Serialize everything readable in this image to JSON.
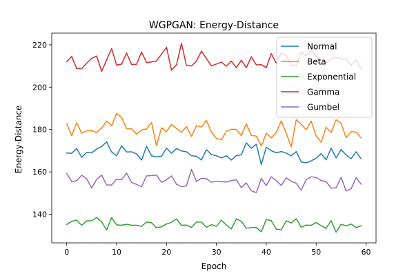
{
  "chart_data": {
    "type": "line",
    "title": "WGPGAN: Energy-Distance",
    "xlabel": "Epoch",
    "ylabel": "Energy-Distance",
    "xlim": [
      -3,
      62
    ],
    "ylim": [
      126.5,
      225.5
    ],
    "xticks": [
      0,
      10,
      20,
      30,
      40,
      50,
      60
    ],
    "yticks": [
      140,
      160,
      180,
      200,
      220
    ],
    "grid": false,
    "legend_position": "top-right",
    "x": [
      0,
      1,
      2,
      3,
      4,
      5,
      6,
      7,
      8,
      9,
      10,
      11,
      12,
      13,
      14,
      15,
      16,
      17,
      18,
      19,
      20,
      21,
      22,
      23,
      24,
      25,
      26,
      27,
      28,
      29,
      30,
      31,
      32,
      33,
      34,
      35,
      36,
      37,
      38,
      39,
      40,
      41,
      42,
      43,
      44,
      45,
      46,
      47,
      48,
      49,
      50,
      51,
      52,
      53,
      54,
      55,
      56,
      57,
      58,
      59
    ],
    "series": [
      {
        "name": "Normal",
        "color": "#1f77b4",
        "values": [
          168.9,
          168.8,
          171.0,
          166.9,
          169.2,
          169.0,
          170.8,
          172.0,
          174.2,
          169.4,
          167.6,
          172.3,
          169.4,
          169.5,
          168.5,
          165.6,
          172.1,
          167.6,
          167.1,
          167.4,
          171.2,
          168.8,
          171.0,
          169.9,
          169.5,
          167.6,
          167.4,
          165.6,
          170.5,
          168.2,
          167.6,
          166.6,
          167.6,
          165.6,
          167.7,
          168.1,
          173.7,
          171.2,
          173.1,
          163.5,
          171.7,
          170.0,
          169.0,
          169.6,
          168.9,
          167.6,
          169.6,
          164.7,
          164.3,
          165.2,
          166.5,
          168.6,
          165.7,
          171.2,
          166.6,
          170.6,
          168.0,
          166.2,
          169.5,
          166.2
        ]
      },
      {
        "name": "Beta",
        "color": "#ff7f0e",
        "values": [
          182.8,
          177.1,
          183.2,
          178.2,
          179.4,
          179.5,
          178.6,
          180.7,
          184.0,
          181.8,
          187.6,
          185.7,
          180.4,
          180.3,
          177.8,
          179.8,
          180.3,
          183.3,
          172.3,
          180.8,
          179.0,
          182.4,
          180.5,
          178.7,
          181.4,
          176.7,
          181.8,
          181.2,
          184.3,
          178.8,
          175.8,
          175.2,
          179.2,
          180.1,
          180.0,
          177.2,
          182.7,
          177.2,
          176.9,
          172.3,
          178.2,
          176.1,
          178.6,
          184.1,
          178.2,
          171.8,
          184.6,
          182.5,
          179.9,
          184.0,
          177.0,
          174.0,
          181.1,
          178.6,
          184.6,
          182.9,
          176.1,
          179.0,
          178.8,
          176.0
        ]
      },
      {
        "name": "Exponential",
        "color": "#2ca02c",
        "values": [
          135.2,
          136.7,
          137.2,
          134.8,
          136.9,
          136.9,
          138.5,
          136.4,
          132.6,
          138.4,
          135.0,
          134.8,
          135.3,
          134.8,
          134.8,
          134.3,
          136.3,
          136.0,
          133.6,
          134.1,
          135.4,
          136.2,
          137.8,
          134.8,
          134.9,
          133.8,
          136.3,
          136.3,
          133.9,
          135.1,
          134.3,
          137.2,
          134.9,
          133.1,
          137.9,
          136.7,
          133.4,
          133.7,
          133.8,
          131.7,
          137.5,
          137.0,
          133.0,
          132.6,
          136.9,
          135.9,
          137.9,
          133.9,
          134.9,
          134.8,
          136.1,
          134.6,
          133.4,
          137.0,
          131.5,
          135.3,
          134.5,
          135.4,
          133.7,
          134.6
        ]
      },
      {
        "name": "Gamma",
        "color": "#d62728",
        "values": [
          212.0,
          214.5,
          208.8,
          208.7,
          211.3,
          213.6,
          214.7,
          207.4,
          212.9,
          218.2,
          210.4,
          210.9,
          216.1,
          210.7,
          210.8,
          216.6,
          211.6,
          211.9,
          212.4,
          215.6,
          218.8,
          208.0,
          210.5,
          220.7,
          210.2,
          210.0,
          212.3,
          217.0,
          213.5,
          210.1,
          210.9,
          211.8,
          209.9,
          212.3,
          209.2,
          212.7,
          209.2,
          214.4,
          210.5,
          210.6,
          209.2,
          215.8,
          211.3,
          216.1,
          214.9,
          210.1,
          210.0,
          216.6,
          214.7,
          217.5,
          214.6,
          210.6,
          211.2,
          213.3,
          214.1,
          213.3,
          213.3,
          210.3,
          212.8,
          208.6
        ]
      },
      {
        "name": "Gumbel",
        "color": "#9467bd",
        "values": [
          159.3,
          155.4,
          155.9,
          158.4,
          156.8,
          152.4,
          156.5,
          158.5,
          153.8,
          153.8,
          156.6,
          156.3,
          159.5,
          155.0,
          154.1,
          153.0,
          158.1,
          158.3,
          158.5,
          155.1,
          156.3,
          158.1,
          154.2,
          153.0,
          153.4,
          161.2,
          155.5,
          157.0,
          156.8,
          155.1,
          155.6,
          155.4,
          155.2,
          155.9,
          156.3,
          152.6,
          154.8,
          151.1,
          150.2,
          156.9,
          153.6,
          157.7,
          155.9,
          153.6,
          157.2,
          155.6,
          154.6,
          151.4,
          156.3,
          157.7,
          157.4,
          155.9,
          155.4,
          152.3,
          152.5,
          157.5,
          151.0,
          152.0,
          157.3,
          154.2
        ]
      }
    ]
  }
}
